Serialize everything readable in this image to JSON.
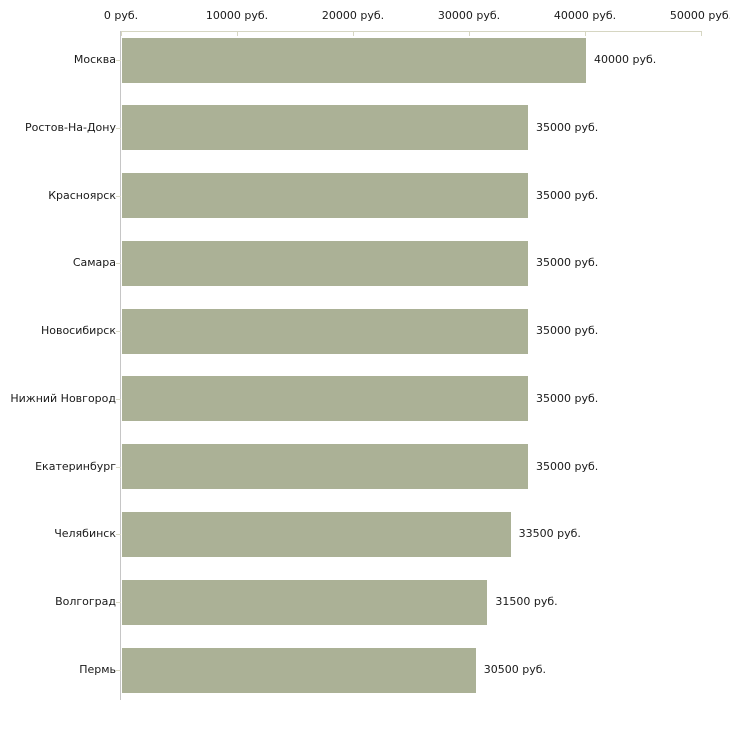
{
  "chart_data": {
    "type": "bar",
    "orientation": "horizontal",
    "title": "",
    "xlabel": "",
    "ylabel": "",
    "categories": [
      "Москва",
      "Ростов-На-Дону",
      "Красноярск",
      "Самара",
      "Новосибирск",
      "Нижний Новгород",
      "Екатеринбург",
      "Челябинск",
      "Волгоград",
      "Пермь"
    ],
    "values": [
      40000,
      35000,
      35000,
      35000,
      35000,
      35000,
      35000,
      33500,
      31500,
      30500
    ],
    "value_labels": [
      "40000 руб.",
      "35000 руб.",
      "35000 руб.",
      "35000 руб.",
      "35000 руб.",
      "35000 руб.",
      "35000 руб.",
      "33500 руб.",
      "31500 руб.",
      "30500 руб."
    ],
    "x_ticks": [
      {
        "value": 0,
        "label": "0 руб."
      },
      {
        "value": 10000,
        "label": "10000 руб."
      },
      {
        "value": 20000,
        "label": "20000 руб."
      },
      {
        "value": 30000,
        "label": "30000 руб."
      },
      {
        "value": 40000,
        "label": "40000 руб."
      },
      {
        "value": 50000,
        "label": "50000 руб."
      }
    ],
    "xlim": [
      0,
      50000
    ],
    "grid": false,
    "legend": null,
    "colors": {
      "bar": "#abb196",
      "x_axis_line": "#d6d6c2",
      "x_tick": "#d6d6c2",
      "y_axis_line": "#c6c6c6",
      "y_tick": "#d9d9c6",
      "text": "#1a1a1a",
      "background": "#ffffff"
    }
  }
}
